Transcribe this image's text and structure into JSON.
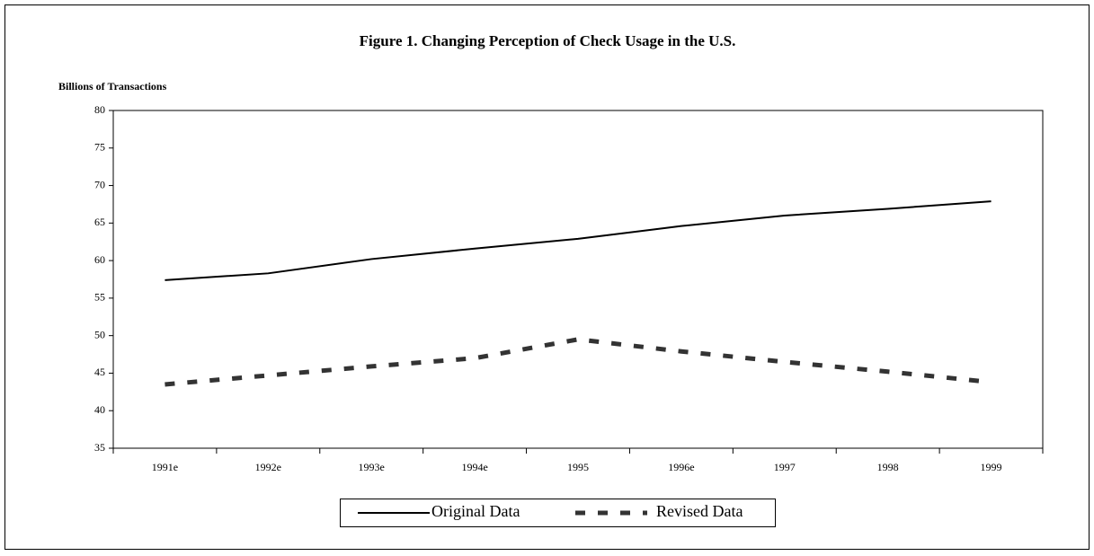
{
  "chart_data": {
    "type": "line",
    "title": "Figure 1. Changing Perception of Check Usage in the U.S.",
    "y_label": "Billions of Transactions",
    "categories": [
      "1991e",
      "1992e",
      "1993e",
      "1994e",
      "1995",
      "1996e",
      "1997",
      "1998",
      "1999"
    ],
    "series": [
      {
        "name": "Original Data",
        "color": "#000000",
        "style": "solid",
        "values": [
          57.4,
          58.3,
          60.2,
          61.6,
          62.9,
          64.6,
          66.0,
          66.9,
          67.9
        ]
      },
      {
        "name": "Revised Data",
        "color": "#333333",
        "style": "dashed",
        "values": [
          43.5,
          44.7,
          45.9,
          47.0,
          49.5,
          47.9,
          46.5,
          45.2,
          43.8
        ]
      }
    ],
    "ylim": [
      35,
      80
    ],
    "yticks": [
      35,
      40,
      45,
      50,
      55,
      60,
      65,
      70,
      75,
      80
    ],
    "legend": "bottom"
  }
}
